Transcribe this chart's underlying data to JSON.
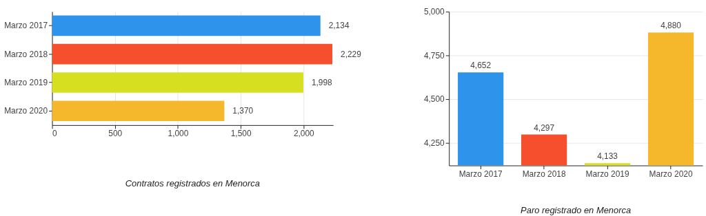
{
  "chart_data": [
    {
      "type": "bar",
      "orientation": "horizontal",
      "title": "Contratos registrados en Menorca",
      "categories": [
        "Marzo 2017",
        "Marzo 2018",
        "Marzo 2019",
        "Marzo 2020"
      ],
      "values": [
        2134,
        2229,
        1998,
        1370
      ],
      "colors": [
        "#2e93ea",
        "#f54f2d",
        "#d6e021",
        "#f5b82c"
      ],
      "xlim": [
        0,
        2235
      ],
      "xticks": [
        0,
        500,
        {
          "value": 1000,
          "label": "1,000"
        },
        {
          "value": 1500,
          "label": "1,500"
        },
        {
          "value": 2000,
          "label": "2,000"
        }
      ],
      "grid": "x",
      "value_labels": [
        "2,134",
        "2,229",
        "1,998",
        "1,370"
      ],
      "legend": false
    },
    {
      "type": "bar",
      "title": "Paro registrado en Menorca",
      "categories": [
        "Marzo 2017",
        "Marzo 2018",
        "Marzo 2019",
        "Marzo 2020"
      ],
      "values": [
        4652,
        4297,
        4133,
        4880
      ],
      "colors": [
        "#2e93ea",
        "#f54f2d",
        "#d6e021",
        "#f5b82c"
      ],
      "ylim": [
        4120,
        5000
      ],
      "yticks": [
        {
          "value": 4250,
          "label": "4,250"
        },
        {
          "value": 4500,
          "label": "4,500"
        },
        {
          "value": 4750,
          "label": "4,750"
        },
        {
          "value": 5000,
          "label": "5,000"
        }
      ],
      "grid": "y",
      "value_labels": [
        "4,652",
        "4,297",
        "4,133",
        "4,880"
      ],
      "legend": false
    }
  ]
}
